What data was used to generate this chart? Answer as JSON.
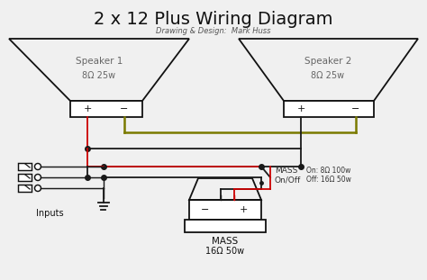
{
  "title": "2 x 12 Plus Wiring Diagram",
  "subtitle": "Drawing & Design:  Mark Huss",
  "bg_color": "#f0f0f0",
  "title_fontsize": 14,
  "subtitle_fontsize": 6,
  "speaker1_label": "Speaker 1",
  "speaker1_spec": "8Ω 25w",
  "speaker2_label": "Speaker 2",
  "speaker2_spec": "8Ω 25w",
  "mass_label": "MASS",
  "mass_spec": "16Ω 50w",
  "mass_switch_label1": "MASS",
  "mass_switch_label2": "On/Off",
  "mass_on_label": "On: 8Ω 100w",
  "mass_off_label": "Off: 16Ω 50w",
  "inputs_label": "Inputs",
  "wire_red": "#cc0000",
  "wire_black": "#1a1a1a",
  "wire_olive": "#7a7a00",
  "line_width": 1.3,
  "dot_size": 4
}
